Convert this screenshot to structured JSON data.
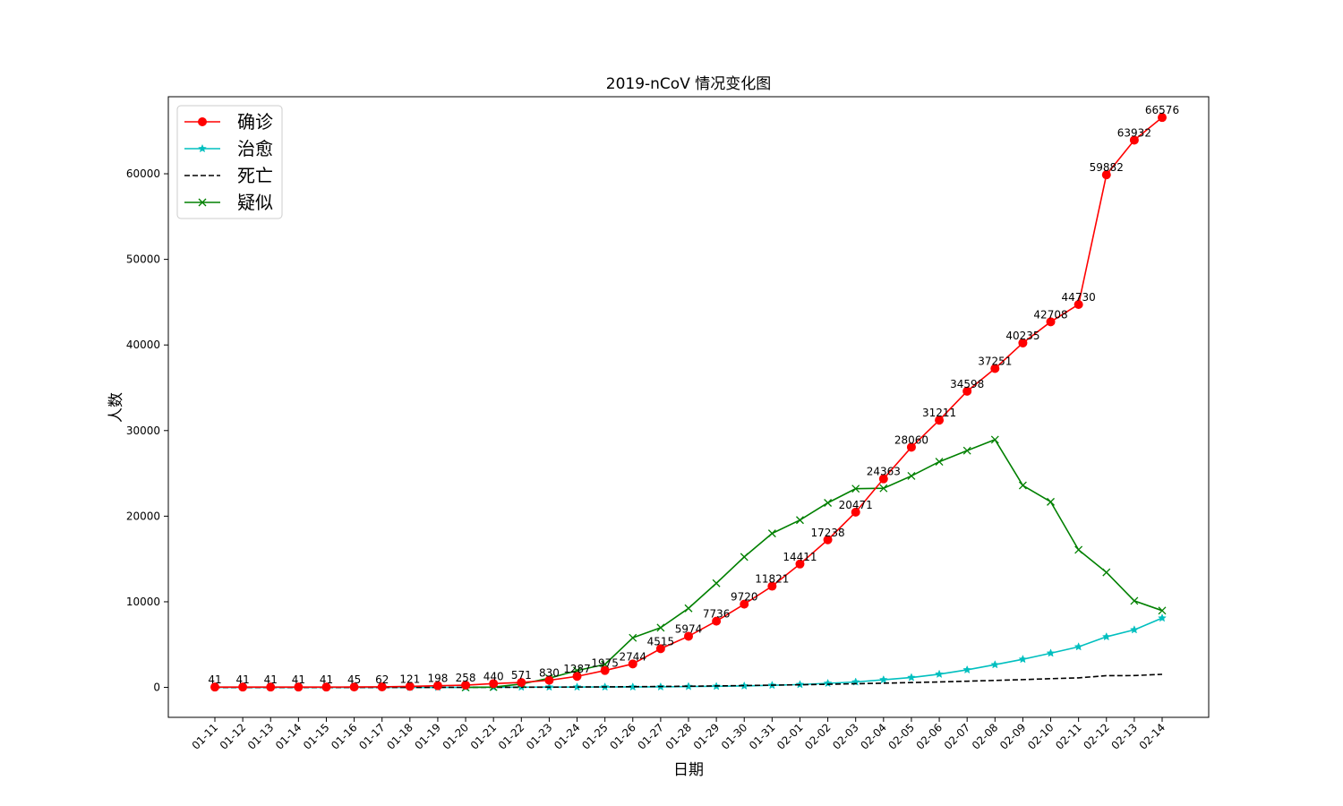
{
  "chart_data": {
    "type": "line",
    "title": "2019-nCoV 情况变化图",
    "xlabel": "日期",
    "ylabel": "人数",
    "ylim": [
      -3500,
      69000
    ],
    "yticks": [
      0,
      10000,
      20000,
      30000,
      40000,
      50000,
      60000
    ],
    "grid": false,
    "legend_position": "top-left",
    "categories": [
      "01-11",
      "01-12",
      "01-13",
      "01-14",
      "01-15",
      "01-16",
      "01-17",
      "01-18",
      "01-19",
      "01-20",
      "01-21",
      "01-22",
      "01-23",
      "01-24",
      "01-25",
      "01-26",
      "01-27",
      "01-28",
      "01-29",
      "01-30",
      "01-31",
      "02-01",
      "02-02",
      "02-03",
      "02-04",
      "02-05",
      "02-06",
      "02-07",
      "02-08",
      "02-09",
      "02-10",
      "02-11",
      "02-12",
      "02-13",
      "02-14"
    ],
    "series": [
      {
        "name": "确诊",
        "color": "#ff0000",
        "line_style": "solid",
        "marker": "circle",
        "show_labels": true,
        "values": [
          41,
          41,
          41,
          41,
          41,
          45,
          62,
          121,
          198,
          258,
          440,
          571,
          830,
          1287,
          1975,
          2744,
          4515,
          5974,
          7736,
          9720,
          11821,
          14411,
          17238,
          20471,
          24363,
          28060,
          31211,
          34598,
          37251,
          40235,
          42708,
          44730,
          59882,
          63932,
          66576
        ]
      },
      {
        "name": "治愈",
        "color": "#00bfbf",
        "line_style": "solid",
        "marker": "star",
        "show_labels": false,
        "values": [
          0,
          0,
          0,
          0,
          0,
          0,
          0,
          0,
          0,
          0,
          25,
          28,
          34,
          38,
          49,
          51,
          60,
          103,
          124,
          171,
          243,
          328,
          475,
          632,
          892,
          1153,
          1540,
          2050,
          2649,
          3281,
          3996,
          4740,
          5911,
          6723,
          8096
        ]
      },
      {
        "name": "死亡",
        "color": "#000000",
        "line_style": "dashed",
        "marker": "none",
        "show_labels": false,
        "values": [
          1,
          1,
          1,
          1,
          2,
          2,
          2,
          3,
          3,
          6,
          9,
          17,
          25,
          41,
          56,
          80,
          106,
          132,
          170,
          213,
          259,
          304,
          361,
          425,
          490,
          563,
          636,
          722,
          811,
          908,
          1016,
          1113,
          1367,
          1380,
          1523
        ]
      },
      {
        "name": "疑似",
        "color": "#008000",
        "line_style": "solid",
        "marker": "x",
        "show_labels": false,
        "values": [
          null,
          null,
          null,
          null,
          null,
          null,
          null,
          null,
          null,
          0,
          37,
          393,
          1072,
          1965,
          2684,
          5794,
          6973,
          9239,
          12167,
          15238,
          17988,
          19544,
          21558,
          23214,
          23260,
          24702,
          26359,
          27657,
          28942,
          23589,
          21675,
          16067,
          13435,
          10109,
          8969
        ]
      }
    ]
  }
}
